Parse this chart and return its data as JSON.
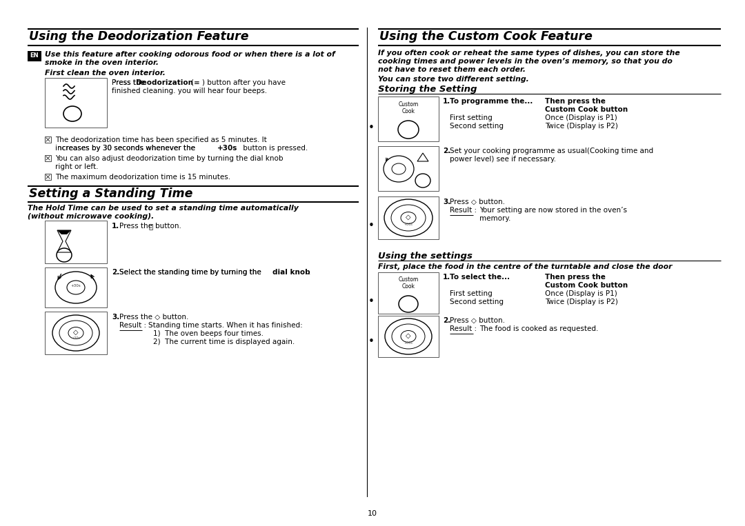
{
  "bg_color": "#ffffff",
  "page_number": "10",
  "left_title": "Using the Deodorization Feature",
  "right_title": "Using the Custom Cook Feature",
  "standing_title": "Setting a Standing Time",
  "en_note_line1": "Use this feature after cooking odorous food or when there is a lot of",
  "en_note_line2": "smoke in the oven interior.",
  "first_clean": "First clean the oven interior.",
  "deod_press": "Press the ",
  "deod_bold": "Deodorization",
  "deod_rest": "(≡ ) button after you have\nfinished cleaning. you will hear four beeps.",
  "bullet1_line1": "The deodorization time has been specified as 5 minutes. It",
  "bullet1_line2": "increases by 30 seconds whenever the ",
  "bullet1_bold": "+30s",
  "bullet1_end": " button is pressed.",
  "bullet2_line1": "You can also adjust deodorization time by turning the dial knob",
  "bullet2_line2": "right or left.",
  "bullet3": "The maximum deodorization time is 15 minutes.",
  "standing_bold_line1": "The Hold Time can be used to set a standing time automatically",
  "standing_bold_line2": "(without microwave cooking).",
  "custom_intro_line1": "If you often cook or reheat the same types of dishes, you can store the",
  "custom_intro_line2": "cooking times and power levels in the oven’s memory, so that you do",
  "custom_intro_line3": "not have to reset them each order.",
  "custom_sub": "You can store two different setting.",
  "storing_title": "Storing the Setting",
  "using_settings_title": "Using the settings",
  "using_settings_bold": "First, place the food in the centre of the turntable and close the door"
}
